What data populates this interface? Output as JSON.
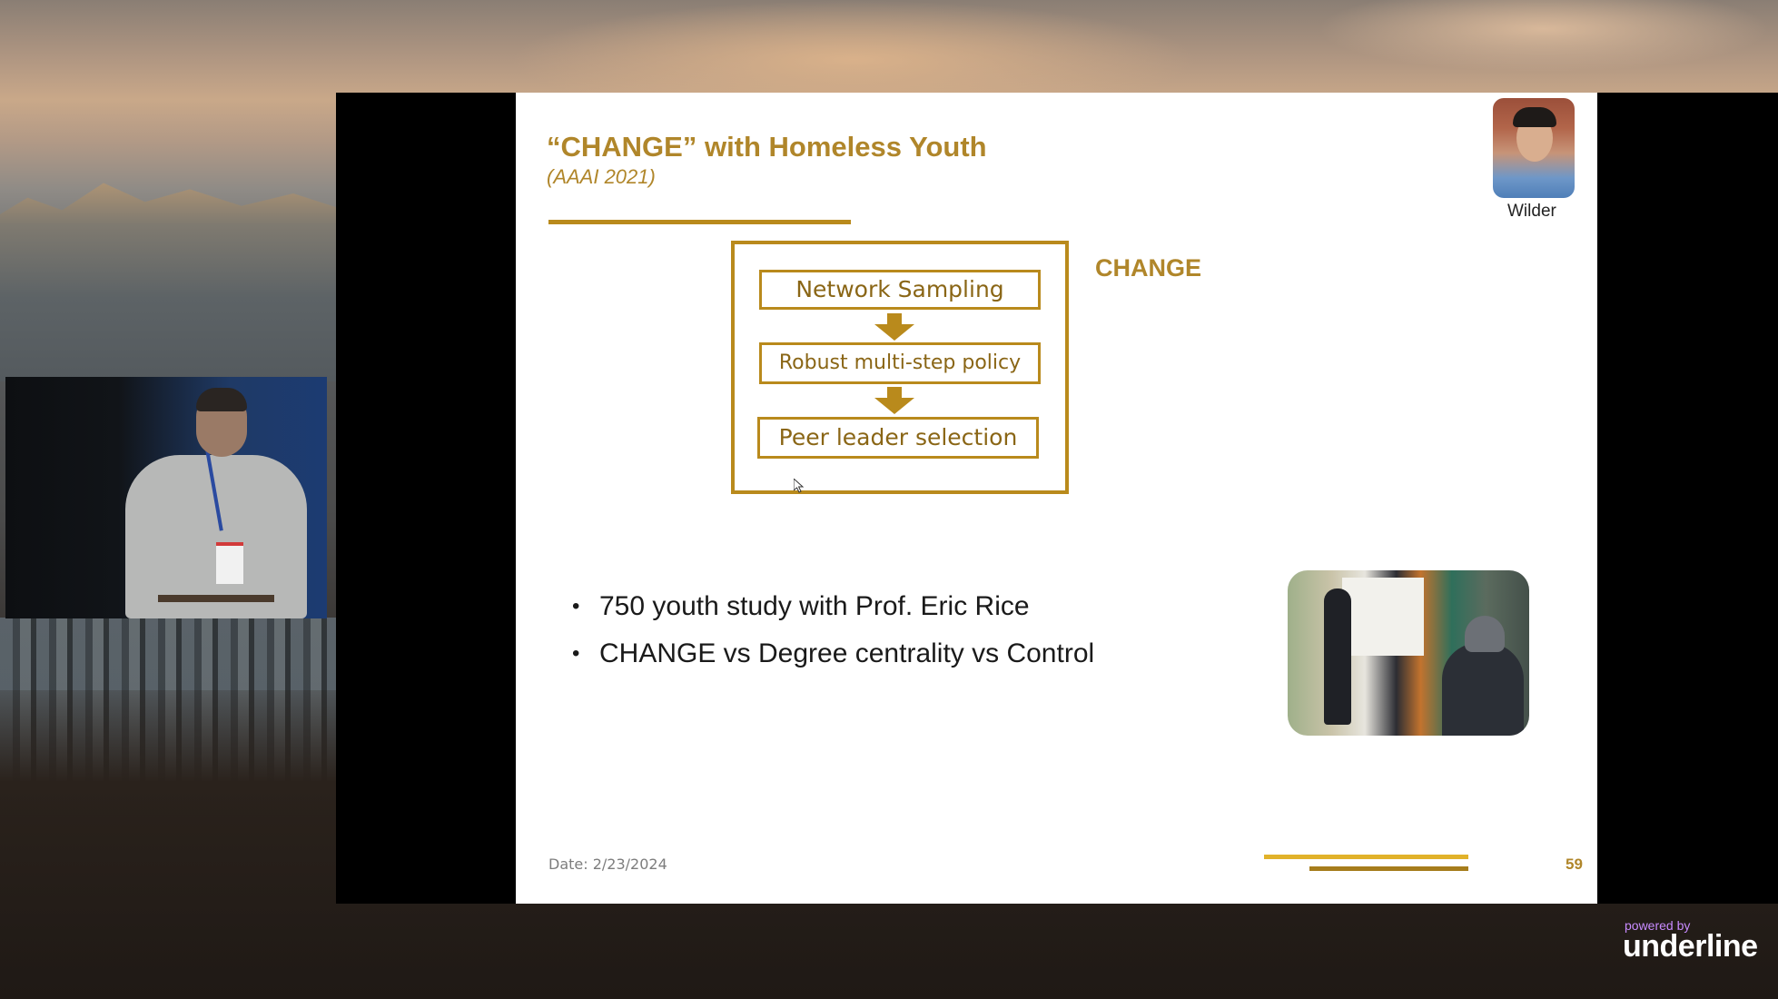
{
  "slide": {
    "title": "“CHANGE” with Homeless Youth",
    "subtitle": "(AAAI 2021)",
    "headshot_name": "Wilder",
    "flow": {
      "steps": [
        "Network Sampling",
        "Robust multi-step policy",
        "Peer leader selection"
      ],
      "label": "CHANGE"
    },
    "bullets": [
      "750 youth study with Prof. Eric Rice",
      "CHANGE vs Degree centrality vs Control"
    ],
    "date": "Date: 2/23/2024",
    "page_number": "59"
  },
  "branding": {
    "powered_by": "powered by",
    "name": "underline"
  },
  "colors": {
    "accent_gold": "#b0862a",
    "rule_gold": "#b98a1c",
    "footer_light_gold": "#e1b22a",
    "brand_purple": "#c88bff"
  },
  "icons": {
    "arrows": "down-arrow-icon",
    "cursor": "mouse-cursor-icon"
  }
}
